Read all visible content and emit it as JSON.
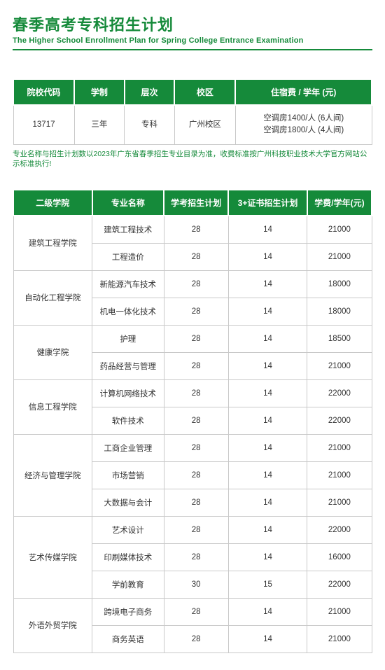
{
  "colors": {
    "accent": "#158a3a",
    "border": "#c9c9c9",
    "text": "#333333",
    "note_text": "#158a3a"
  },
  "title": {
    "cn": "春季高考专科招生计划",
    "en": "The Higher School  Enrollment Plan for Spring College Entrance Examination"
  },
  "info_table": {
    "col_widths_pct": [
      17,
      14,
      14,
      17,
      38
    ],
    "headers": [
      "院校代码",
      "学制",
      "层次",
      "校区",
      "住宿费 / 学年 (元)"
    ],
    "row": {
      "code": "13717",
      "duration": "三年",
      "level": "专科",
      "campus": "广州校区",
      "dorm1": "空调房1400/人 (6人间)",
      "dorm2": "空调房1800/人 (4人间)"
    }
  },
  "note": "专业名称与招生计划数以2023年广东省春季招生专业目录为准，收费标准按广州科技职业技术大学官方网站公示标准执行!",
  "majors_table": {
    "col_widths_pct": [
      22,
      20,
      18,
      22,
      18
    ],
    "headers": [
      "二级学院",
      "专业名称",
      "学考招生计划",
      "3+证书招生计划",
      "学费/学年(元)"
    ],
    "rows": [
      {
        "college": "建筑工程学院",
        "span": 2,
        "major": "建筑工程技术",
        "plan1": "28",
        "plan2": "14",
        "tuition": "21000"
      },
      {
        "major": "工程造价",
        "plan1": "28",
        "plan2": "14",
        "tuition": "21000"
      },
      {
        "college": "自动化工程学院",
        "span": 2,
        "major": "新能源汽车技术",
        "plan1": "28",
        "plan2": "14",
        "tuition": "18000"
      },
      {
        "major": "机电一体化技术",
        "plan1": "28",
        "plan2": "14",
        "tuition": "18000"
      },
      {
        "college": "健康学院",
        "span": 2,
        "major": "护理",
        "plan1": "28",
        "plan2": "14",
        "tuition": "18500"
      },
      {
        "major": "药品经营与管理",
        "plan1": "28",
        "plan2": "14",
        "tuition": "21000"
      },
      {
        "college": "信息工程学院",
        "span": 2,
        "major": "计算机网络技术",
        "plan1": "28",
        "plan2": "14",
        "tuition": "22000"
      },
      {
        "major": "软件技术",
        "plan1": "28",
        "plan2": "14",
        "tuition": "22000"
      },
      {
        "college": "经济与管理学院",
        "span": 3,
        "major": "工商企业管理",
        "plan1": "28",
        "plan2": "14",
        "tuition": "21000"
      },
      {
        "major": "市场营销",
        "plan1": "28",
        "plan2": "14",
        "tuition": "21000"
      },
      {
        "major": "大数据与会计",
        "plan1": "28",
        "plan2": "14",
        "tuition": "21000"
      },
      {
        "college": "艺术传媒学院",
        "span": 3,
        "major": "艺术设计",
        "plan1": "28",
        "plan2": "14",
        "tuition": "22000"
      },
      {
        "major": "印刷媒体技术",
        "plan1": "28",
        "plan2": "14",
        "tuition": "16000"
      },
      {
        "major": "学前教育",
        "plan1": "30",
        "plan2": "15",
        "tuition": "22000"
      },
      {
        "college": "外语外贸学院",
        "span": 2,
        "major": "跨境电子商务",
        "plan1": "28",
        "plan2": "14",
        "tuition": "21000"
      },
      {
        "major": "商务英语",
        "plan1": "28",
        "plan2": "14",
        "tuition": "21000"
      }
    ]
  }
}
